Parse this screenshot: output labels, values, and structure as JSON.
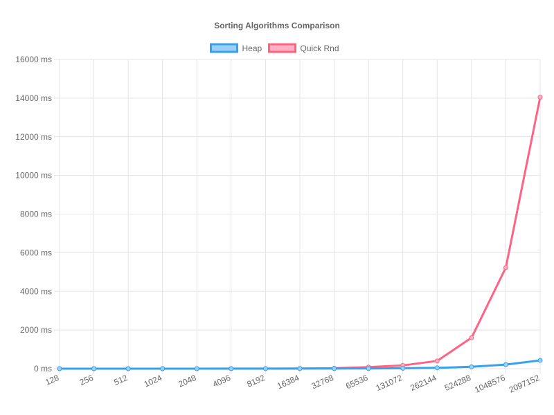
{
  "chart_data": {
    "type": "line",
    "title": "Sorting Algorithms Comparison",
    "xlabel": "",
    "ylabel": "",
    "y_unit_suffix": " ms",
    "ylim": [
      0,
      16000
    ],
    "y_tick_step": 2000,
    "grid": true,
    "legend_position": "top-center",
    "categories": [
      "128",
      "256",
      "512",
      "1024",
      "2048",
      "4096",
      "8192",
      "16384",
      "32768",
      "65536",
      "131072",
      "262144",
      "524288",
      "1048576",
      "2097152"
    ],
    "series": [
      {
        "name": "Heap",
        "color": "#36a2eb",
        "fill": "#9ad0f5",
        "values": [
          0,
          0,
          0,
          0,
          0,
          1,
          1,
          2,
          4,
          9,
          20,
          43,
          95,
          210,
          430
        ]
      },
      {
        "name": "Quick Rnd",
        "color": "#ff6384",
        "fill": "#ffb1c1",
        "values": [
          0,
          0,
          0,
          0,
          1,
          2,
          4,
          8,
          20,
          80,
          170,
          400,
          1600,
          5230,
          14050
        ]
      }
    ]
  }
}
